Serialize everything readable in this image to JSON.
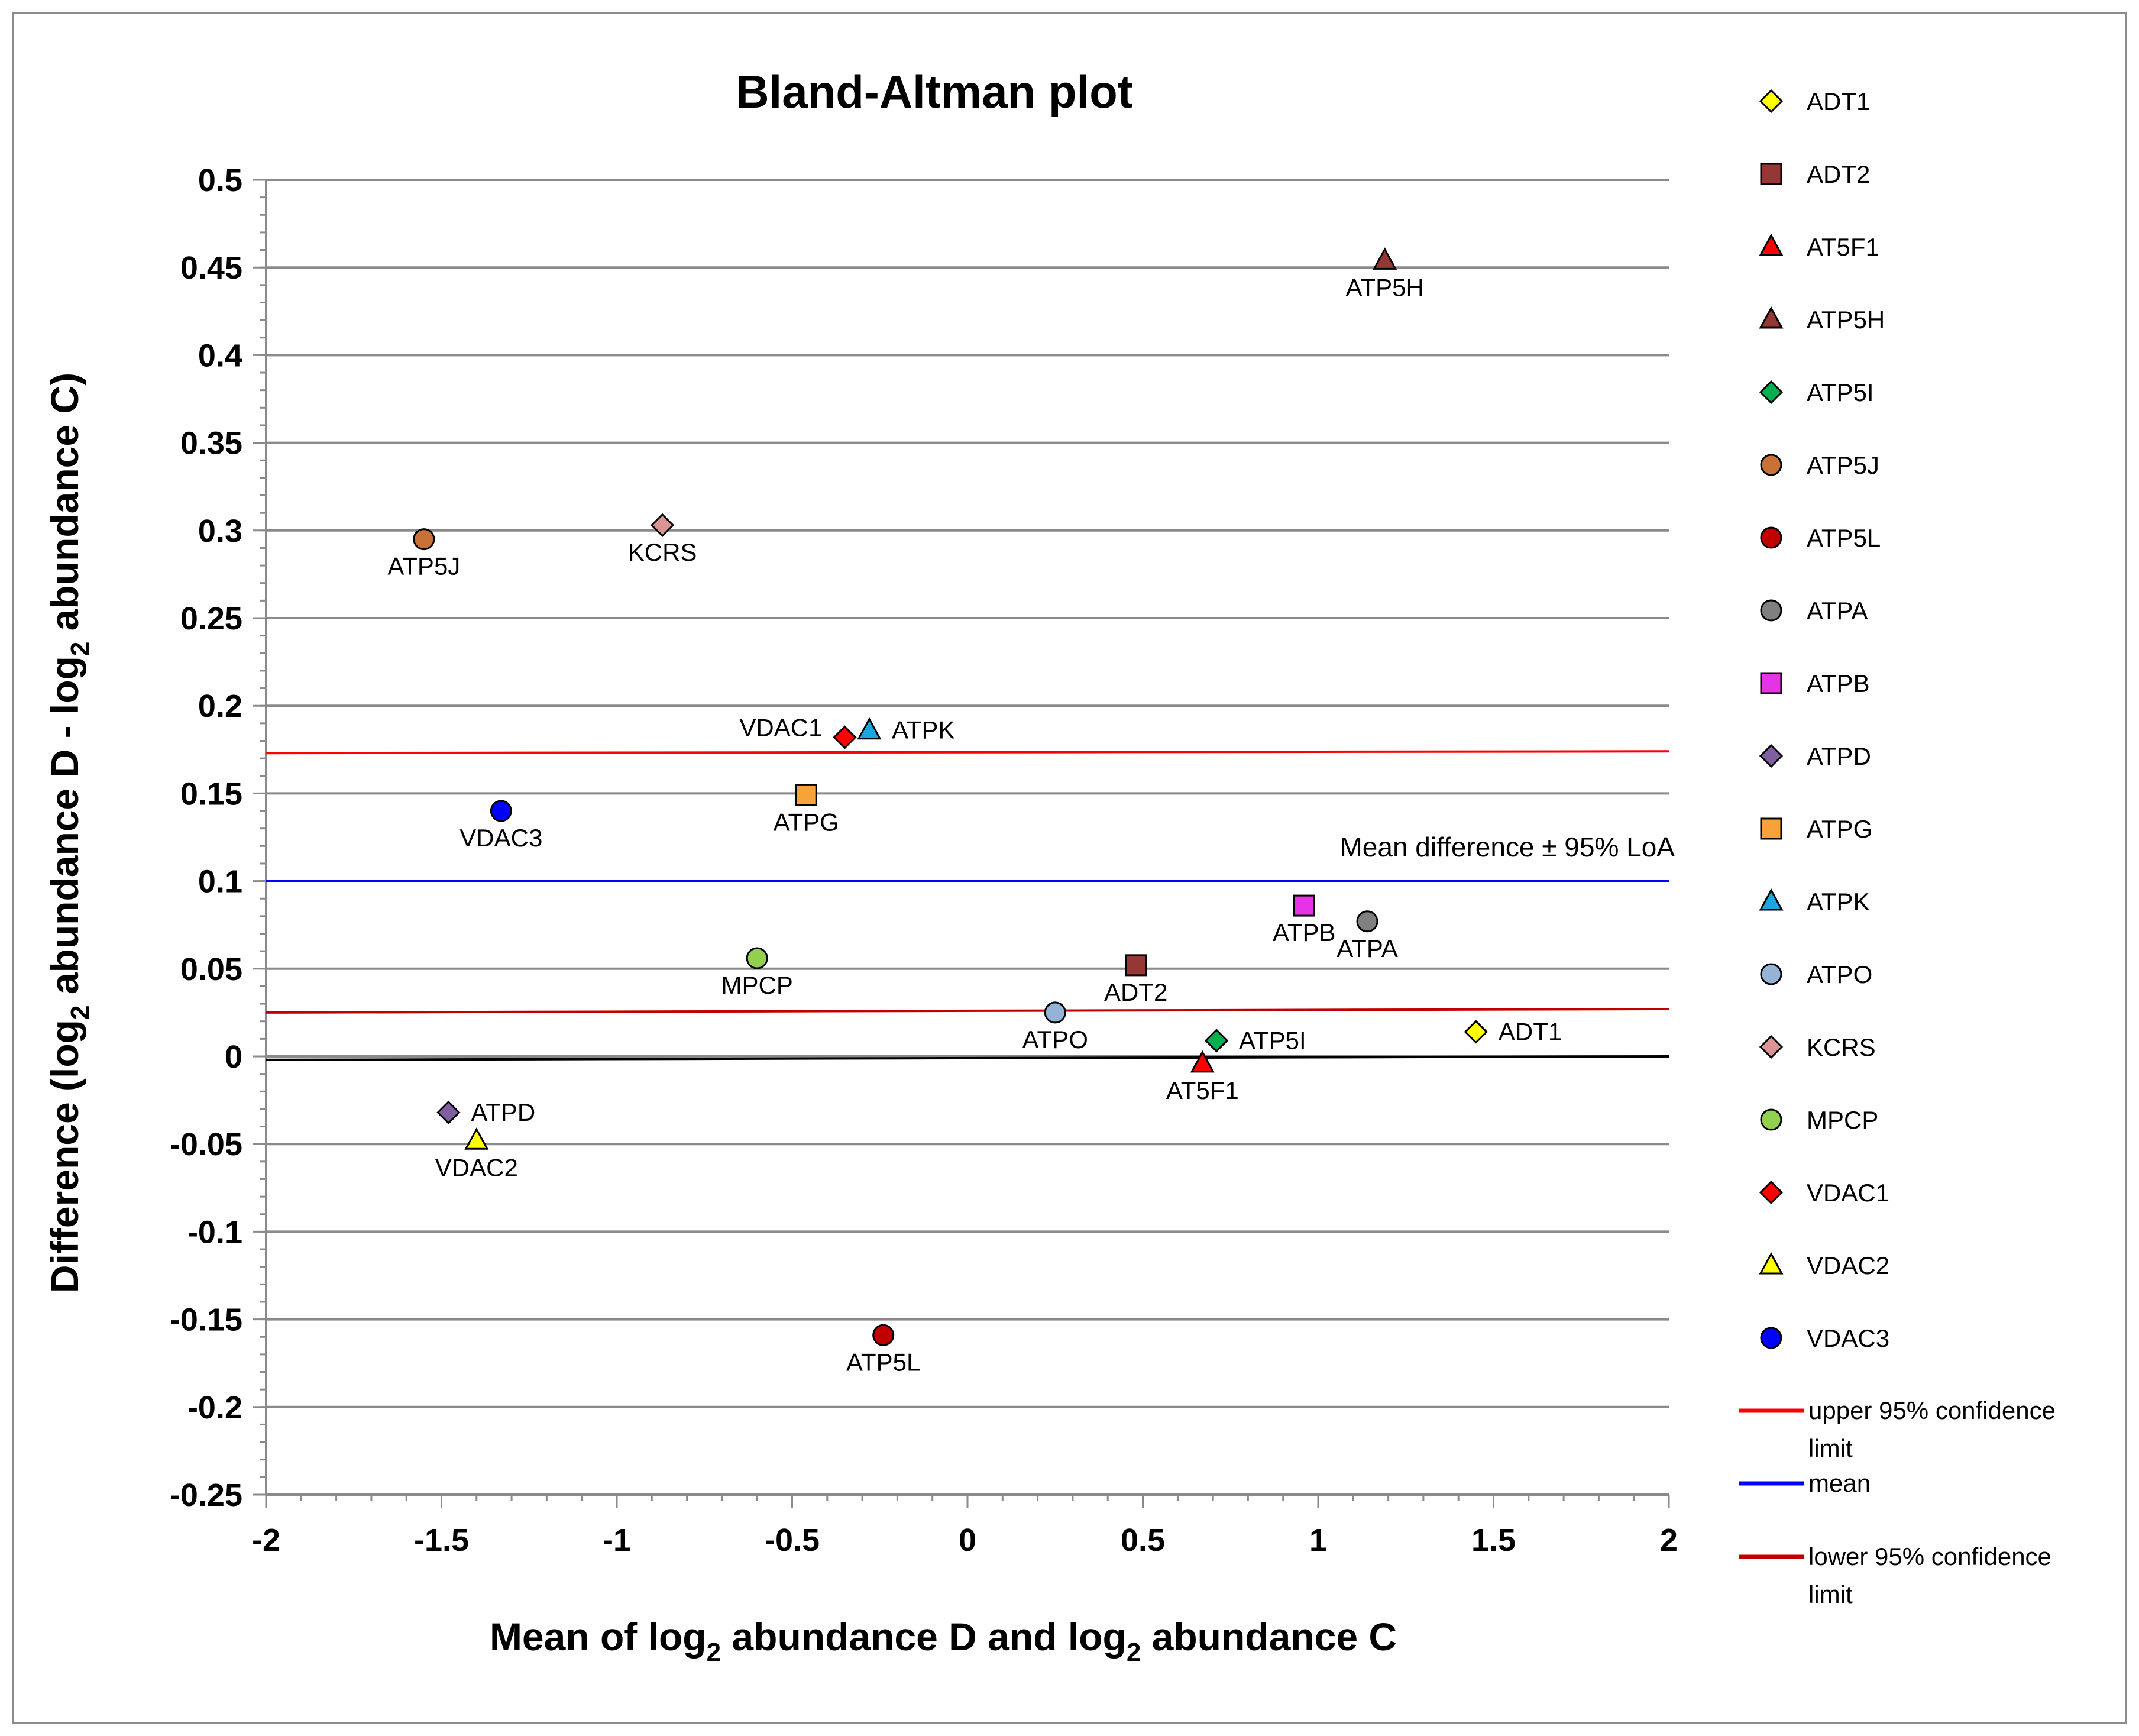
{
  "chart_data": {
    "type": "scatter",
    "title": "Bland-Altman plot",
    "xlabel": {
      "pre": "Mean of log",
      "sub1": "2",
      "mid": " abundance D and log",
      "sub2": "2",
      "post": " abundance C"
    },
    "ylabel": {
      "pre": "Difference (log",
      "sub1": "2",
      "mid": " abundance D - log",
      "sub2": "2",
      "post": " abundance C)"
    },
    "xlim": [
      -2,
      2
    ],
    "ylim": [
      -0.25,
      0.5
    ],
    "xticks": [
      "-2",
      "-1.5",
      "-1",
      "-0.5",
      "0",
      "0.5",
      "1",
      "1.5",
      "2"
    ],
    "yticks": [
      "0.5",
      "0.45",
      "0.4",
      "0.35",
      "0.3",
      "0.25",
      "0.2",
      "0.15",
      "0.1",
      "0.05",
      "0",
      "-0.05",
      "-0.1",
      "-0.15",
      "-0.2",
      "-0.25"
    ],
    "annotation": "Mean difference ± 95% LoA",
    "series": [
      {
        "name": "ADT1",
        "x": 1.45,
        "y": 0.014,
        "marker": "diamond",
        "color": "#ffff00",
        "label_pos": "right"
      },
      {
        "name": "ADT2",
        "x": 0.48,
        "y": 0.052,
        "marker": "square",
        "color": "#953735",
        "label_pos": "below"
      },
      {
        "name": "AT5F1",
        "x": 0.67,
        "y": -0.004,
        "marker": "triangle",
        "color": "#ff0000",
        "label_pos": "below"
      },
      {
        "name": "ATP5H",
        "x": 1.19,
        "y": 0.454,
        "marker": "triangle",
        "color": "#953735",
        "label_pos": "below"
      },
      {
        "name": "ATP5I",
        "x": 0.71,
        "y": 0.009,
        "marker": "diamond",
        "color": "#00b050",
        "label_pos": "right"
      },
      {
        "name": "ATP5J",
        "x": -1.55,
        "y": 0.295,
        "marker": "circle",
        "color": "#c87137",
        "label_pos": "below"
      },
      {
        "name": "ATP5L",
        "x": -0.24,
        "y": -0.159,
        "marker": "circle",
        "color": "#c00000",
        "label_pos": "below"
      },
      {
        "name": "ATPA",
        "x": 1.14,
        "y": 0.077,
        "marker": "circle",
        "color": "#808080",
        "label_pos": "below"
      },
      {
        "name": "ATPB",
        "x": 0.96,
        "y": 0.086,
        "marker": "square",
        "color": "#e633e6",
        "label_pos": "below"
      },
      {
        "name": "ATPD",
        "x": -1.48,
        "y": -0.032,
        "marker": "diamond",
        "color": "#7f5fa0",
        "label_pos": "right"
      },
      {
        "name": "ATPG",
        "x": -0.46,
        "y": 0.149,
        "marker": "square",
        "color": "#f7a23b",
        "label_pos": "below"
      },
      {
        "name": "ATPK",
        "x": -0.28,
        "y": 0.186,
        "marker": "triangle",
        "color": "#1aa7e0",
        "label_pos": "right"
      },
      {
        "name": "ATPO",
        "x": 0.25,
        "y": 0.025,
        "marker": "circle",
        "color": "#95b3d7",
        "label_pos": "below"
      },
      {
        "name": "KCRS",
        "x": -0.87,
        "y": 0.303,
        "marker": "diamond",
        "color": "#d99594",
        "label_pos": "below"
      },
      {
        "name": "MPCP",
        "x": -0.6,
        "y": 0.056,
        "marker": "circle",
        "color": "#92d050",
        "label_pos": "below"
      },
      {
        "name": "VDAC1",
        "x": -0.35,
        "y": 0.182,
        "marker": "diamond",
        "color": "#ff0000",
        "label_pos": "left"
      },
      {
        "name": "VDAC2",
        "x": -1.4,
        "y": -0.048,
        "marker": "triangle",
        "color": "#ffff00",
        "label_pos": "below"
      },
      {
        "name": "VDAC3",
        "x": -1.33,
        "y": 0.14,
        "marker": "circle",
        "color": "#0000ff",
        "label_pos": "below"
      }
    ],
    "lines": [
      {
        "name": "upper 95% confidence limit",
        "color": "#ff0000",
        "y_start": 0.173,
        "y_end": 0.174
      },
      {
        "name": "mean",
        "color": "#0000ff",
        "y_start": 0.1,
        "y_end": 0.1
      },
      {
        "name": "lower 95% confidence limit",
        "color": "#c00000",
        "y_start": 0.025,
        "y_end": 0.027
      },
      {
        "name": "zero",
        "color": "#000000",
        "y_start": -0.002,
        "y_end": 0.0,
        "in_legend": false
      }
    ],
    "legend": {
      "position": "right",
      "marker_entries": [
        "ADT1",
        "ADT2",
        "AT5F1",
        "ATP5H",
        "ATP5I",
        "ATP5J",
        "ATP5L",
        "ATPA",
        "ATPB",
        "ATPD",
        "ATPG",
        "ATPK",
        "ATPO",
        "KCRS",
        "MPCP",
        "VDAC1",
        "VDAC2",
        "VDAC3"
      ],
      "line_entries": [
        {
          "lines": [
            "upper 95% confidence",
            "limit"
          ],
          "color": "#ff0000"
        },
        {
          "lines": [
            "mean"
          ],
          "color": "#0000ff"
        },
        {
          "lines": [
            "lower 95% confidence",
            "limit"
          ],
          "color": "#c00000"
        }
      ]
    }
  }
}
